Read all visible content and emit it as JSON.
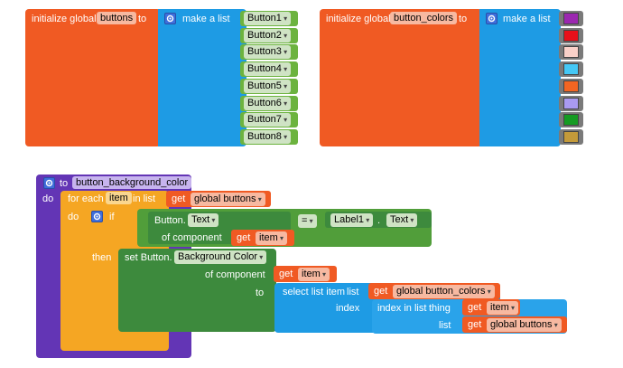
{
  "colors": {
    "global_block": "#f05a23",
    "list_block": "#1e9be4",
    "string_block": "#6cb33f",
    "procedure_block": "#6335b5",
    "control_block": "#f5a623",
    "component_block": "#3d8a3d"
  },
  "init_buttons": {
    "prefix": "initialize global",
    "var_name": "buttons",
    "to": "to",
    "make_list": "make a list",
    "items": [
      "Button1",
      "Button2",
      "Button3",
      "Button4",
      "Button5",
      "Button6",
      "Button7",
      "Button8"
    ]
  },
  "init_colors": {
    "prefix": "initialize global",
    "var_name": "button_colors",
    "to": "to",
    "make_list": "make a list",
    "swatches": [
      "#9b27b0",
      "#e8101a",
      "#f9d0c8",
      "#45c8f5",
      "#f26522",
      "#a99af0",
      "#159b22",
      "#c49a3a"
    ]
  },
  "procedure": {
    "to": "to",
    "name": "button_background_color",
    "do": "do",
    "for_each": "for each",
    "item_var": "item",
    "in_list": "in list",
    "get": "get",
    "global_buttons": "global buttons",
    "do2": "do",
    "if": "if",
    "button_text_prefix": "Button.",
    "text_prop": "Text",
    "of_component": "of component",
    "get_item": "item",
    "equals": "=",
    "label1": "Label1",
    "dot": ".",
    "label_text_prop": "Text",
    "then": "then",
    "set_button": "set Button.",
    "bgcolor_prop": "Background Color",
    "of_component2": "of component",
    "to2": "to",
    "select_list_item": "select list item",
    "list_word": "list",
    "global_button_colors": "global button_colors",
    "index_word": "index",
    "index_in_list": "index in list",
    "thing": "thing",
    "list_word2": "list",
    "global_buttons2": "global buttons"
  }
}
